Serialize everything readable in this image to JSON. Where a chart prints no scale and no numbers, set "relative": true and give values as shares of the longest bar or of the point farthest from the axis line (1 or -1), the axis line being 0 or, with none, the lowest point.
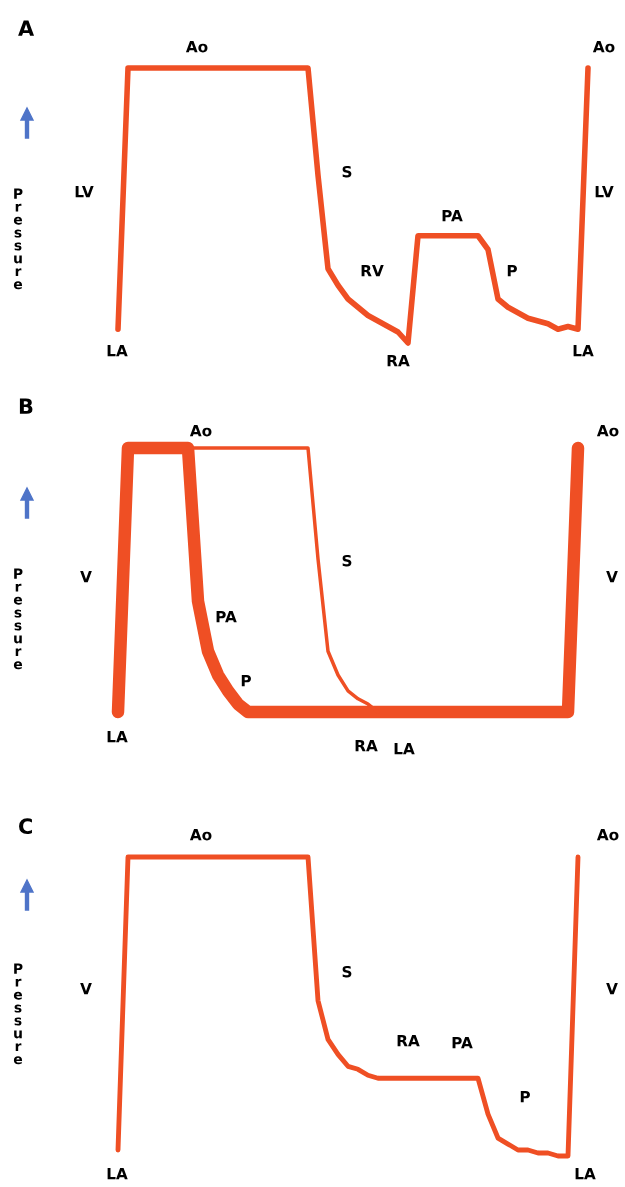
{
  "chart_data": [
    {
      "type": "line",
      "title": "A",
      "ylabel": "Pressure",
      "relative": true,
      "categories": [
        null,
        null,
        null,
        null,
        null,
        null,
        null,
        null,
        null,
        null,
        null,
        null,
        null,
        null,
        null,
        null,
        null,
        null,
        null,
        null,
        null,
        null,
        null,
        null,
        null,
        null,
        null,
        null,
        null,
        null,
        null,
        null,
        null,
        null,
        null,
        null,
        null,
        null,
        null,
        null,
        null,
        null,
        null,
        null,
        null,
        null,
        null,
        null
      ],
      "series": [
        {
          "color": "#ef4f24",
          "values": [
            0.05,
            1,
            1,
            1,
            1,
            1,
            1,
            1,
            1,
            1,
            1,
            1,
            1,
            1,
            1,
            1,
            1,
            1,
            1,
            1,
            0.61,
            0.27,
            0.21,
            0.16,
            0.13,
            0.1,
            0.08,
            0.06,
            0.04,
            0,
            0.39,
            0.39,
            0.39,
            0.39,
            0.39,
            0.39,
            0.39,
            0.34,
            0.16,
            0.13,
            0.11,
            0.09,
            0.08,
            0.07,
            0.05,
            0.06,
            0.05,
            1
          ]
        }
      ],
      "annotations": [
        "Ao",
        "Ao",
        "LV",
        "LV",
        "S",
        "RV",
        "PA",
        "P",
        "LA",
        "RA",
        "LA"
      ]
    },
    {
      "type": "line",
      "title": "B",
      "ylabel": "Pressure",
      "relative": true,
      "categories": [
        null,
        null,
        null,
        null,
        null,
        null,
        null,
        null,
        null,
        null,
        null,
        null,
        null,
        null,
        null,
        null,
        null,
        null,
        null,
        null,
        null,
        null,
        null,
        null,
        null,
        null,
        null,
        null,
        null,
        null,
        null,
        null,
        null,
        null,
        null,
        null,
        null,
        null,
        null,
        null,
        null,
        null,
        null,
        null,
        null,
        null,
        null
      ],
      "series": [
        {
          "color": "#ef4f24",
          "values": [
            0,
            1,
            1,
            1,
            1,
            1,
            1,
            1,
            0.42,
            0.23,
            0.14,
            0.08,
            0.03,
            0,
            0,
            0,
            0,
            0,
            0,
            0,
            0,
            0,
            0,
            0,
            0,
            0,
            0,
            0,
            0,
            0,
            0,
            0,
            0,
            0,
            0,
            0,
            0,
            0,
            0,
            0,
            0,
            0,
            0,
            0,
            0,
            0,
            1
          ]
        },
        {
          "color": "#ef4f24",
          "values": [
            null,
            null,
            null,
            null,
            null,
            null,
            null,
            1,
            1,
            1,
            1,
            1,
            1,
            1,
            1,
            1,
            1,
            1,
            1,
            1,
            0.58,
            0.23,
            0.14,
            0.08,
            0.05,
            0.03,
            0,
            null,
            null,
            null,
            null,
            null,
            null,
            null,
            null,
            null,
            null,
            null,
            null,
            null,
            null,
            null,
            null,
            null,
            null,
            null,
            null
          ]
        }
      ],
      "annotations": [
        "Ao",
        "Ao",
        "V",
        "V",
        "S",
        "PA",
        "P",
        "LA",
        "RA",
        "LA"
      ]
    },
    {
      "type": "line",
      "title": "C",
      "ylabel": "Pressure",
      "relative": true,
      "categories": [
        null,
        null,
        null,
        null,
        null,
        null,
        null,
        null,
        null,
        null,
        null,
        null,
        null,
        null,
        null,
        null,
        null,
        null,
        null,
        null,
        null,
        null,
        null,
        null,
        null,
        null,
        null,
        null,
        null,
        null,
        null,
        null,
        null,
        null,
        null,
        null,
        null,
        null,
        null,
        null,
        null,
        null,
        null,
        null,
        null,
        null,
        null
      ],
      "series": [
        {
          "color": "#ef4f24",
          "values": [
            0.02,
            1,
            1,
            1,
            1,
            1,
            1,
            1,
            1,
            1,
            1,
            1,
            1,
            1,
            1,
            1,
            1,
            1,
            1,
            1,
            0.52,
            0.39,
            0.34,
            0.3,
            0.29,
            0.27,
            0.26,
            0.26,
            0.26,
            0.26,
            0.26,
            0.26,
            0.26,
            0.26,
            0.26,
            0.26,
            0.26,
            0.14,
            0.06,
            0.04,
            0.02,
            0.02,
            0.01,
            0.01,
            0,
            0,
            1
          ]
        }
      ],
      "annotations": [
        "Ao",
        "Ao",
        "V",
        "V",
        "S",
        "RA",
        "PA",
        "P",
        "LA",
        "LA"
      ]
    }
  ]
}
